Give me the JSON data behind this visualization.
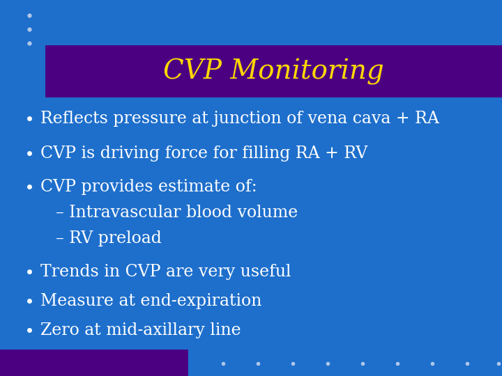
{
  "title": "CVP Monitoring",
  "title_color": "#FFD700",
  "title_bg_color": "#4B0082",
  "bg_color": "#1E6FCC",
  "bullet_color": "#FFFFFF",
  "bullet_points": [
    "Reflects pressure at junction of vena cava + RA",
    "CVP is driving force for filling RA + RV",
    "CVP provides estimate of:",
    "– Intravascular blood volume",
    "– RV preload",
    "Trends in CVP are very useful",
    "Measure at end-expiration",
    "Zero at mid-axillary line"
  ],
  "is_subbullet": [
    false,
    false,
    false,
    true,
    true,
    false,
    false,
    false
  ],
  "top_dots_color": "#B0C8E8",
  "bottom_dots_color": "#B0C8E8",
  "bottom_bar_color": "#4B0082",
  "title_font_size": 28,
  "bullet_font_size": 17
}
